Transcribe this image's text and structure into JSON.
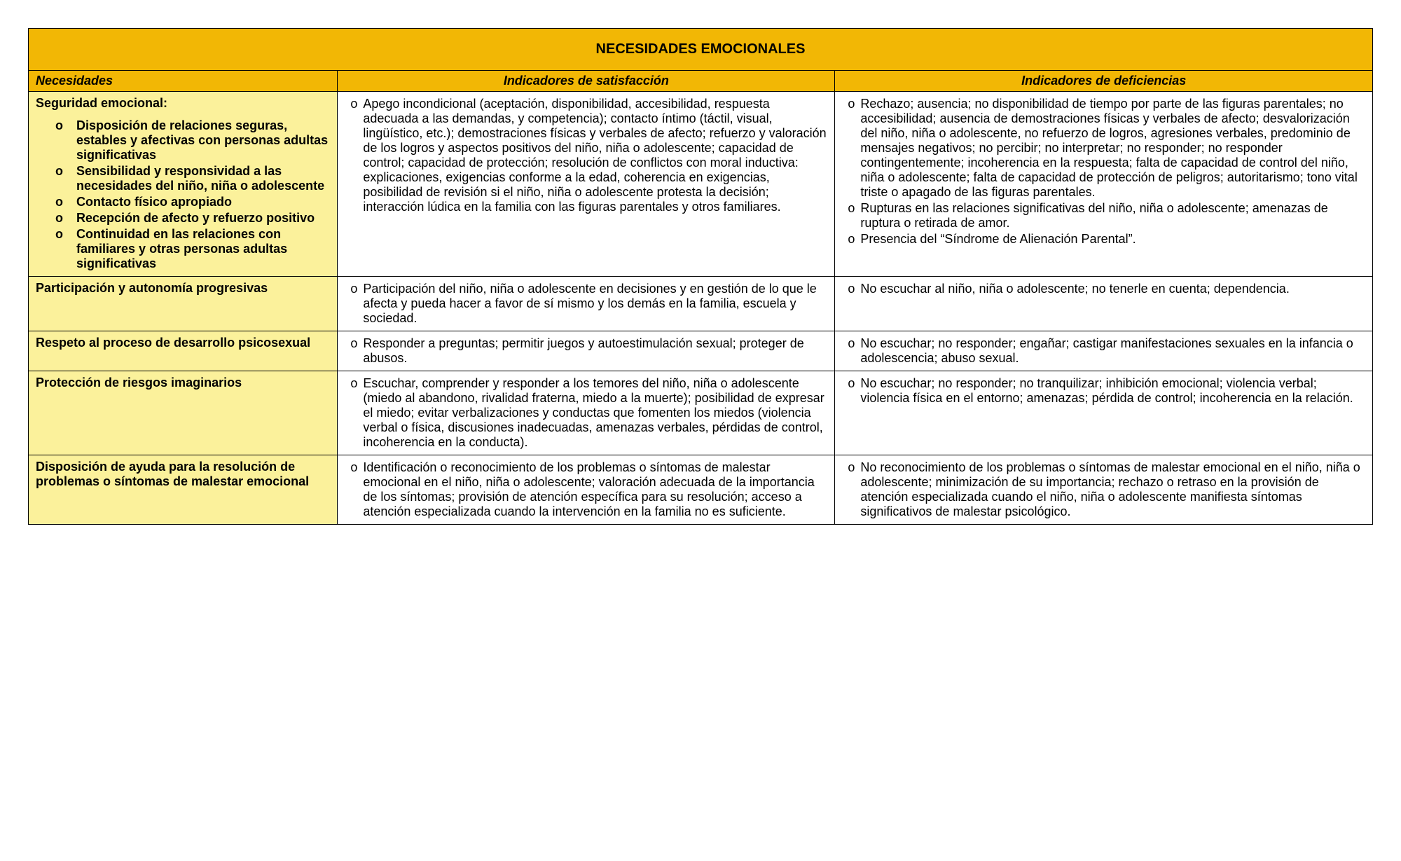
{
  "colors": {
    "title_bg": "#f2b705",
    "necesidades_bg": "#fbf19b",
    "border": "#000000",
    "body_bg": "#ffffff",
    "text": "#000000"
  },
  "title": "NECESIDADES EMOCIONALES",
  "headers": {
    "necesidades": "Necesidades",
    "satisfaccion": "Indicadores de satisfacción",
    "deficiencias": "Indicadores de deficiencias"
  },
  "rows": [
    {
      "necesidad_title": "Seguridad emocional:",
      "necesidad_subitems": [
        "Disposición de relaciones seguras, estables y afectivas con personas adultas significativas",
        "Sensibilidad y responsividad a las necesidades del niño, niña o adolescente",
        "Contacto físico apropiado",
        "Recepción de afecto y refuerzo positivo",
        "Continuidad en las relaciones con familiares y otras personas adultas significativas"
      ],
      "satisfaccion": [
        "Apego incondicional (aceptación, disponibilidad, accesibilidad, respuesta adecuada a las demandas, y competencia); contacto íntimo (táctil, visual, lingüístico, etc.); demostraciones físicas y verbales de afecto; refuerzo y valoración de los logros y aspectos positivos del niño, niña o adolescente;  capacidad de control; capacidad de protección; resolución de conflictos con moral inductiva: explicaciones, exigencias conforme a la edad, coherencia en exigencias, posibilidad de revisión si el niño, niña o adolescente protesta la decisión; interacción lúdica en la familia con las figuras parentales y otros familiares."
      ],
      "deficiencias": [
        "Rechazo; ausencia; no disponibilidad de tiempo por parte de las figuras parentales; no accesibilidad; ausencia de demostraciones físicas y verbales de afecto; desvalorización del niño, niña o adolescente, no refuerzo de logros, agresiones verbales, predominio de mensajes negativos; no percibir; no interpretar; no responder; no responder contingentemente; incoherencia en la respuesta; falta de capacidad de control del niño, niña o adolescente; falta de capacidad de protección de peligros; autoritarismo; tono vital triste o apagado de las figuras parentales.",
        "Rupturas en las relaciones significativas del niño, niña o adolescente; amenazas de ruptura o retirada de amor.",
        "Presencia del “Síndrome de Alienación Parental”."
      ]
    },
    {
      "necesidad_title": "Participación y autonomía progresivas",
      "necesidad_subitems": [],
      "satisfaccion": [
        "Participación del niño, niña o adolescente en decisiones y en gestión de lo que le afecta y pueda hacer a favor de sí mismo y los demás en la familia, escuela y sociedad."
      ],
      "deficiencias": [
        "No escuchar al niño, niña o adolescente; no tenerle en cuenta; dependencia."
      ]
    },
    {
      "necesidad_title": "Respeto al proceso de desarrollo psicosexual",
      "necesidad_subitems": [],
      "satisfaccion": [
        "Responder a preguntas; permitir juegos y autoestimulación sexual; proteger de abusos."
      ],
      "deficiencias": [
        "No escuchar; no responder; engañar; castigar manifestaciones sexuales en la infancia o adolescencia; abuso sexual."
      ]
    },
    {
      "necesidad_title": "Protección de riesgos imaginarios",
      "necesidad_subitems": [],
      "satisfaccion": [
        "Escuchar, comprender y responder a los temores del niño, niña o adolescente (miedo al abandono, rivalidad fraterna, miedo a la muerte); posibilidad de expresar el miedo; evitar verbalizaciones y conductas que fomenten los miedos (violencia verbal o física, discusiones inadecuadas, amenazas verbales, pérdidas de control, incoherencia en la conducta)."
      ],
      "deficiencias": [
        "No escuchar; no responder; no tranquilizar; inhibición emocional; violencia verbal; violencia física en el entorno; amenazas; pérdida de control; incoherencia en la relación."
      ]
    },
    {
      "necesidad_title": "Disposición de ayuda para la resolución de problemas o síntomas de malestar emocional",
      "necesidad_subitems": [],
      "satisfaccion": [
        "Identificación o reconocimiento de los problemas o síntomas de malestar emocional en el niño, niña o adolescente; valoración adecuada de la importancia de los síntomas; provisión de atención específica para su resolución; acceso a atención especializada cuando la intervención en la familia no es suficiente."
      ],
      "deficiencias": [
        "No reconocimiento de los problemas o síntomas de malestar emocional en el niño, niña o adolescente; minimización de su importancia; rechazo o retraso en la provisión de atención especializada cuando el niño, niña o adolescente manifiesta síntomas significativos de malestar psicológico."
      ]
    }
  ]
}
